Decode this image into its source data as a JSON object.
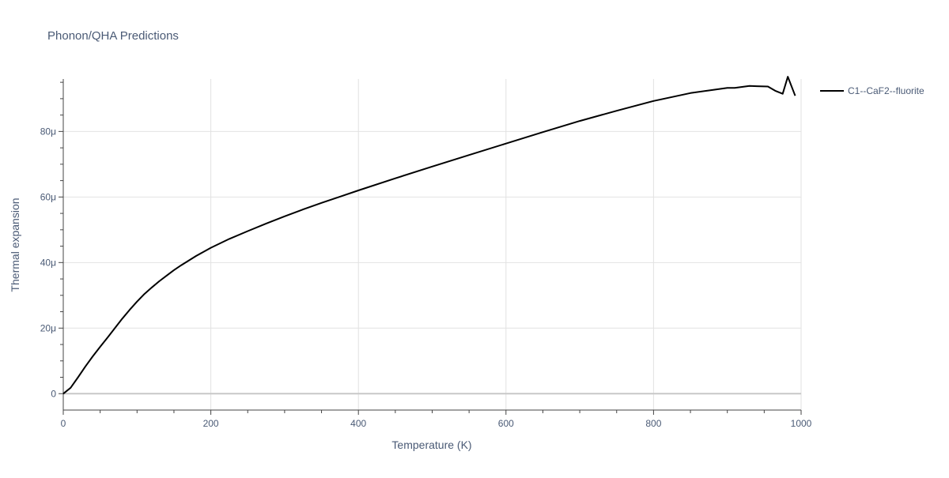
{
  "chart_data": {
    "type": "line",
    "title": "Phonon/QHA Predictions",
    "xlabel": "Temperature (K)",
    "ylabel": "Thermal expansion",
    "xlim": [
      0,
      1000
    ],
    "ylim": [
      -5,
      96
    ],
    "x_ticks": [
      0,
      200,
      400,
      600,
      800,
      1000
    ],
    "x_tick_labels": [
      "0",
      "200",
      "400",
      "600",
      "800",
      "1000"
    ],
    "y_ticks": [
      0,
      20,
      40,
      60,
      80
    ],
    "y_tick_labels": [
      "0",
      "20μ",
      "40μ",
      "60μ",
      "80μ"
    ],
    "grid": true,
    "legend_position": "top-right",
    "series": [
      {
        "name": "C1--CaF2--fluorite",
        "color": "#000000",
        "x": [
          0,
          10,
          20,
          30,
          40,
          50,
          60,
          70,
          80,
          90,
          100,
          110,
          120,
          130,
          140,
          150,
          160,
          180,
          200,
          225,
          250,
          275,
          300,
          325,
          350,
          375,
          400,
          450,
          500,
          550,
          600,
          650,
          700,
          750,
          800,
          850,
          875,
          900,
          910,
          930,
          940,
          955,
          965,
          975,
          982,
          992
        ],
        "y": [
          0,
          1.8,
          5,
          8.3,
          11.4,
          14.3,
          17.1,
          20,
          22.9,
          25.6,
          28.1,
          30.4,
          32.4,
          34.3,
          36,
          37.7,
          39.2,
          42,
          44.5,
          47.2,
          49.6,
          51.9,
          54.1,
          56.2,
          58.2,
          60.1,
          62,
          65.7,
          69.3,
          72.8,
          76.3,
          79.8,
          83.2,
          86.3,
          89.3,
          91.7,
          92.5,
          93.3,
          93.3,
          93.9,
          93.8,
          93.7,
          92.4,
          91.5,
          96.7,
          90.9
        ]
      }
    ]
  }
}
